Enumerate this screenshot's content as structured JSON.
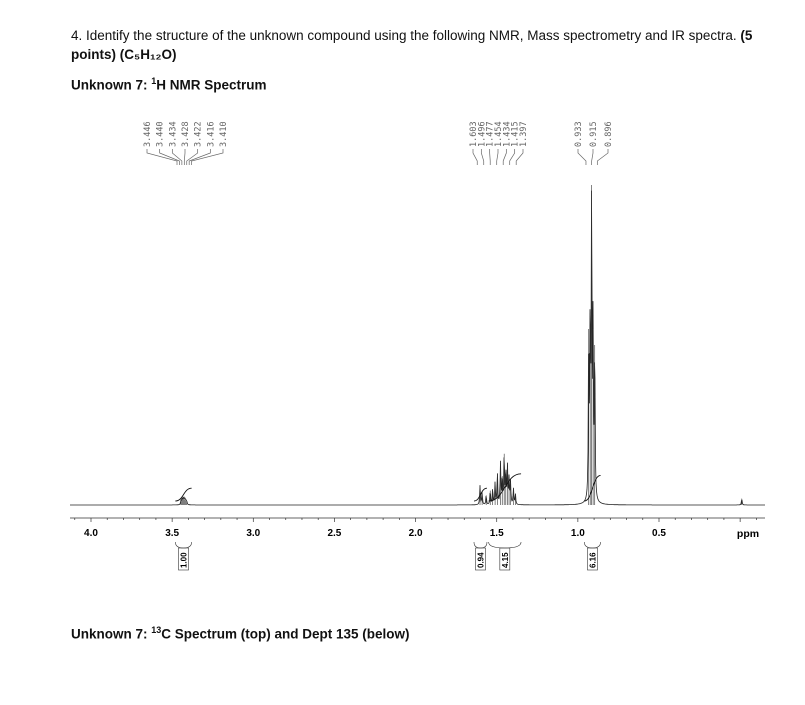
{
  "question": {
    "number": "4.",
    "text": "Identify the structure of the unknown compound using the following NMR, Mass spectrometry and IR spectra.",
    "points": "(5 points)",
    "formula": "(C₅H₁₂O)"
  },
  "nmr_heading": {
    "prefix": "Unknown 7: ",
    "sup": "1",
    "suffix": "H NMR Spectrum"
  },
  "c13_heading": {
    "prefix": "Unknown 7: ",
    "sup": "13",
    "suffix": "C Spectrum (top) and Dept 135 (below)"
  },
  "chart_data": {
    "type": "line",
    "title": "",
    "xlabel": "ppm",
    "ylabel": "",
    "xlim": [
      4.2,
      -0.2
    ],
    "x_reversed": true,
    "x_ticks": [
      {
        "value": 4.0,
        "label": "4.0"
      },
      {
        "value": 3.5,
        "label": "3.5"
      },
      {
        "value": 3.0,
        "label": "3.0"
      },
      {
        "value": 2.5,
        "label": "2.5"
      },
      {
        "value": 2.0,
        "label": "2.0"
      },
      {
        "value": 1.5,
        "label": "1.5"
      },
      {
        "value": 1.0,
        "label": "1.0"
      },
      {
        "value": 0.5,
        "label": "0.5"
      }
    ],
    "peak_label_groups": [
      {
        "labels": [
          "3.446",
          "3.440",
          "3.434",
          "3.428",
          "3.422",
          "3.416",
          "3.410"
        ]
      },
      {
        "labels": [
          "1.603",
          "1.496",
          "1.477",
          "1.454",
          "1.434",
          "1.415",
          "1.397"
        ]
      },
      {
        "labels": [
          "0.933",
          "0.915",
          "0.896"
        ]
      }
    ],
    "peaks": [
      {
        "shift": 3.446,
        "height": 0.012
      },
      {
        "shift": 3.44,
        "height": 0.016
      },
      {
        "shift": 3.434,
        "height": 0.018
      },
      {
        "shift": 3.428,
        "height": 0.02
      },
      {
        "shift": 3.422,
        "height": 0.018
      },
      {
        "shift": 3.416,
        "height": 0.015
      },
      {
        "shift": 3.41,
        "height": 0.011
      },
      {
        "shift": 1.603,
        "height": 0.06
      },
      {
        "shift": 1.59,
        "height": 0.04
      },
      {
        "shift": 1.565,
        "height": 0.03
      },
      {
        "shift": 1.54,
        "height": 0.045
      },
      {
        "shift": 1.525,
        "height": 0.05
      },
      {
        "shift": 1.51,
        "height": 0.07
      },
      {
        "shift": 1.496,
        "height": 0.1
      },
      {
        "shift": 1.477,
        "height": 0.13
      },
      {
        "shift": 1.466,
        "height": 0.09
      },
      {
        "shift": 1.454,
        "height": 0.16
      },
      {
        "shift": 1.444,
        "height": 0.11
      },
      {
        "shift": 1.434,
        "height": 0.12
      },
      {
        "shift": 1.424,
        "height": 0.08
      },
      {
        "shift": 1.415,
        "height": 0.07
      },
      {
        "shift": 1.397,
        "height": 0.05
      },
      {
        "shift": 1.385,
        "height": 0.035
      },
      {
        "shift": 0.933,
        "height": 0.55
      },
      {
        "shift": 0.924,
        "height": 0.6
      },
      {
        "shift": 0.915,
        "height": 1.0
      },
      {
        "shift": 0.906,
        "height": 0.55
      },
      {
        "shift": 0.896,
        "height": 0.5
      },
      {
        "shift": -0.01,
        "height": 0.02
      }
    ],
    "integrals": [
      {
        "label": "1.00",
        "from": 3.48,
        "to": 3.38,
        "rise": 0.04
      },
      {
        "label": "0.94",
        "from": 1.64,
        "to": 1.56,
        "rise": 0.04
      },
      {
        "label": "4.15",
        "from": 1.55,
        "to": 1.35,
        "rise": 0.085
      },
      {
        "label": "6.16",
        "from": 0.96,
        "to": 0.86,
        "rise": 0.08
      }
    ]
  }
}
